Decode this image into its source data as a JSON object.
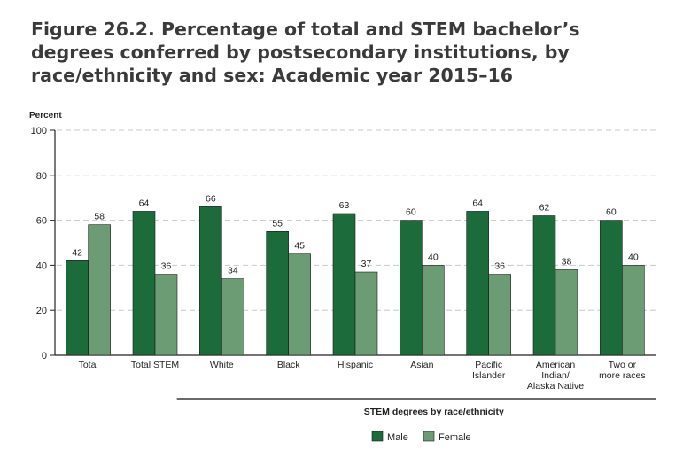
{
  "title": "Figure 26.2. Percentage of total and STEM bachelor’s degrees conferred by postsecondary institutions, by race/ethnicity and sex: Academic year 2015–16",
  "colors": {
    "male": "#1c6b3b",
    "female": "#6b9c74",
    "grid": "#c8c8c8",
    "axis": "#222222"
  },
  "chart_data": {
    "type": "bar",
    "ylabel": "Percent",
    "xlabel": "",
    "ylim": [
      0,
      100
    ],
    "yticks": [
      0,
      20,
      40,
      60,
      80,
      100
    ],
    "grid": true,
    "categories": [
      [
        "Total"
      ],
      [
        "Total STEM"
      ],
      [
        "White"
      ],
      [
        "Black"
      ],
      [
        "Hispanic"
      ],
      [
        "Asian"
      ],
      [
        "Pacific",
        "Islander"
      ],
      [
        "American",
        "Indian/",
        "Alaska Native"
      ],
      [
        "Two or",
        "more races"
      ]
    ],
    "series": [
      {
        "name": "Male",
        "values": [
          42,
          64,
          66,
          55,
          63,
          60,
          64,
          62,
          60
        ]
      },
      {
        "name": "Female",
        "values": [
          58,
          36,
          34,
          45,
          37,
          40,
          36,
          38,
          40
        ]
      }
    ],
    "group_bracket_label": "STEM degrees by race/ethnicity",
    "legend_position": "bottom"
  }
}
